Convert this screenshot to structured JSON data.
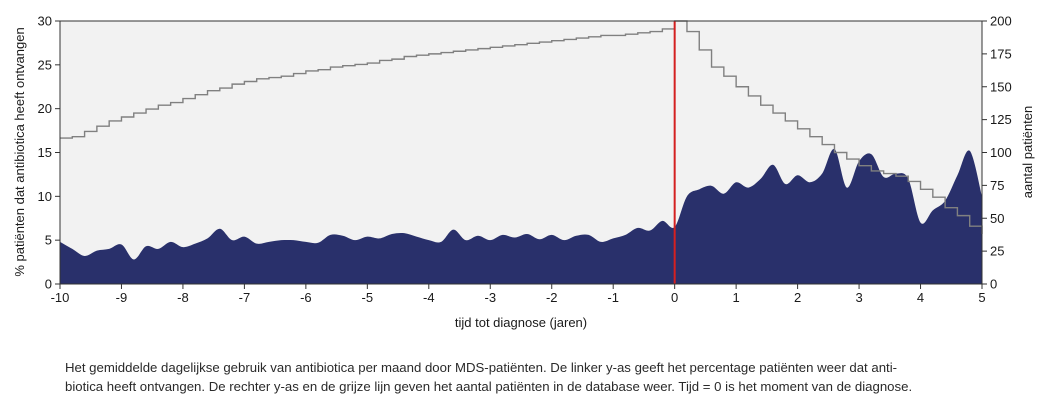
{
  "chart_data": {
    "type": "area",
    "xlabel": "tijd tot diagnose (jaren)",
    "ylabel_left": "% patiënten dat antibiotica heeft ontvangen",
    "ylabel_right": "aantal patiënten",
    "xlim": [
      -10,
      5
    ],
    "ylim_left": [
      0,
      30
    ],
    "ylim_right": [
      0,
      200
    ],
    "xticks": [
      -10,
      -9,
      -8,
      -7,
      -6,
      -5,
      -4,
      -3,
      -2,
      -1,
      0,
      1,
      2,
      3,
      4,
      5
    ],
    "yticks_left": [
      0,
      5,
      10,
      15,
      20,
      25,
      30
    ],
    "yticks_right": [
      0,
      25,
      50,
      75,
      100,
      125,
      150,
      175,
      200
    ],
    "grid": false,
    "diagnosis_marker_x": 0,
    "colors": {
      "area": "#29306b",
      "count_line": "#808080",
      "marker": "#d42020",
      "plot_bg": "#f2f2f2"
    },
    "series": [
      {
        "axis": "left",
        "x": [
          -10.0,
          -9.8,
          -9.6,
          -9.4,
          -9.2,
          -9.0,
          -8.8,
          -8.6,
          -8.4,
          -8.2,
          -8.0,
          -7.8,
          -7.6,
          -7.4,
          -7.2,
          -7.0,
          -6.8,
          -6.6,
          -6.4,
          -6.2,
          -6.0,
          -5.8,
          -5.6,
          -5.4,
          -5.2,
          -5.0,
          -4.8,
          -4.6,
          -4.4,
          -4.2,
          -4.0,
          -3.8,
          -3.6,
          -3.4,
          -3.2,
          -3.0,
          -2.8,
          -2.6,
          -2.4,
          -2.2,
          -2.0,
          -1.8,
          -1.6,
          -1.4,
          -1.2,
          -1.0,
          -0.8,
          -0.6,
          -0.4,
          -0.2,
          0.0,
          0.2,
          0.4,
          0.6,
          0.8,
          1.0,
          1.2,
          1.4,
          1.6,
          1.8,
          2.0,
          2.2,
          2.4,
          2.6,
          2.8,
          3.0,
          3.2,
          3.4,
          3.6,
          3.8,
          4.0,
          4.2,
          4.4,
          4.6,
          4.8,
          5.0
        ],
        "values": [
          4.8,
          4.0,
          3.2,
          3.8,
          4.0,
          4.5,
          2.8,
          4.3,
          4.0,
          4.8,
          4.2,
          4.6,
          5.2,
          6.3,
          5.0,
          5.4,
          4.6,
          4.8,
          5.0,
          5.0,
          4.8,
          4.7,
          5.6,
          5.5,
          5.0,
          5.4,
          5.2,
          5.7,
          5.8,
          5.4,
          5.0,
          4.8,
          6.2,
          5.0,
          5.5,
          5.0,
          5.6,
          5.3,
          5.7,
          5.1,
          5.6,
          5.0,
          5.5,
          5.6,
          4.8,
          5.2,
          5.6,
          6.4,
          6.1,
          7.2,
          6.5,
          10.0,
          10.8,
          11.2,
          10.3,
          11.6,
          11.0,
          12.0,
          13.6,
          11.4,
          12.4,
          11.6,
          12.6,
          15.4,
          11.0,
          14.0,
          14.8,
          12.2,
          12.6,
          12.0,
          7.0,
          8.4,
          9.5,
          12.4,
          15.2,
          10.0
        ]
      },
      {
        "axis": "right",
        "x": [
          -10.0,
          -9.8,
          -9.6,
          -9.4,
          -9.2,
          -9.0,
          -8.8,
          -8.6,
          -8.4,
          -8.2,
          -8.0,
          -7.8,
          -7.6,
          -7.4,
          -7.2,
          -7.0,
          -6.8,
          -6.6,
          -6.4,
          -6.2,
          -6.0,
          -5.8,
          -5.6,
          -5.4,
          -5.2,
          -5.0,
          -4.8,
          -4.6,
          -4.4,
          -4.2,
          -4.0,
          -3.8,
          -3.6,
          -3.4,
          -3.2,
          -3.0,
          -2.8,
          -2.6,
          -2.4,
          -2.2,
          -2.0,
          -1.8,
          -1.6,
          -1.4,
          -1.2,
          -1.0,
          -0.8,
          -0.6,
          -0.4,
          -0.2,
          0.0,
          0.2,
          0.4,
          0.6,
          0.8,
          1.0,
          1.2,
          1.4,
          1.6,
          1.8,
          2.0,
          2.2,
          2.4,
          2.6,
          2.8,
          3.0,
          3.2,
          3.4,
          3.6,
          3.8,
          4.0,
          4.2,
          4.4,
          4.6,
          4.8,
          5.0
        ],
        "values": [
          111,
          112,
          116,
          120,
          124,
          127,
          130,
          133,
          136,
          138,
          141,
          144,
          147,
          149,
          152,
          154,
          156,
          157,
          158,
          160,
          162,
          163,
          165,
          166,
          167,
          168,
          170,
          171,
          173,
          174,
          175,
          176,
          177,
          178,
          179,
          180,
          181,
          182,
          183,
          184,
          185,
          186,
          187,
          188,
          189,
          189,
          190,
          191,
          192,
          194,
          200,
          192,
          178,
          165,
          158,
          150,
          143,
          136,
          130,
          124,
          118,
          112,
          106,
          100,
          95,
          90,
          86,
          84,
          82,
          78,
          72,
          66,
          58,
          52,
          44,
          38
        ]
      }
    ]
  },
  "caption": {
    "line1": "Het gemiddelde dagelijkse gebruik van antibiotica per maand door MDS-patiënten. De linker y-as geeft het percentage patiënten weer dat anti-",
    "line2": "biotica heeft ontvangen. De rechter y-as en de grijze lijn geven het aantal patiënten in de database weer. Tijd = 0 is het moment van de diagnose."
  }
}
